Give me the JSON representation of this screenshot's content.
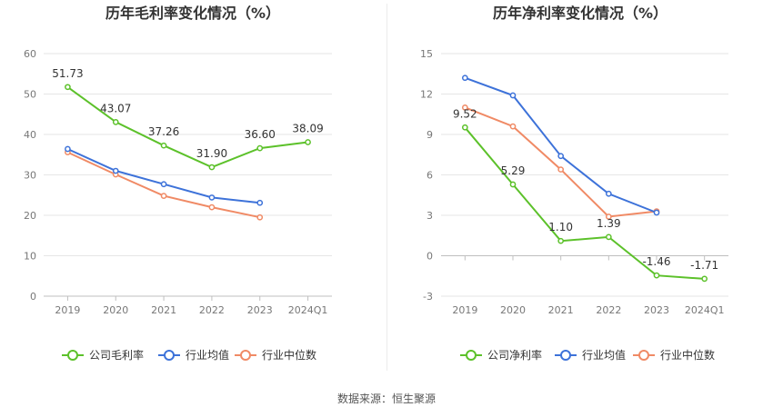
{
  "source_text": "数据来源：恒生聚源",
  "colors": {
    "company": "#5cc12a",
    "industry_avg": "#3d72d9",
    "industry_median": "#f08a65",
    "grid": "#e6e6e6",
    "axis_text": "#777777",
    "title": "#333333"
  },
  "chart_data": [
    {
      "type": "line",
      "title": "历年毛利率变化情况（%）",
      "categories": [
        "2019",
        "2020",
        "2021",
        "2022",
        "2023",
        "2024Q1"
      ],
      "ylim": [
        0,
        60
      ],
      "yticks": [
        0,
        10,
        20,
        30,
        40,
        50,
        60
      ],
      "grid": true,
      "legend_position": "bottom",
      "series": [
        {
          "name": "公司毛利率",
          "color_key": "company",
          "values": [
            51.73,
            43.07,
            37.26,
            31.9,
            36.6,
            38.09
          ],
          "labels": [
            "51.73",
            "43.07",
            "37.26",
            "31.90",
            "36.60",
            "38.09"
          ]
        },
        {
          "name": "行业均值",
          "color_key": "industry_avg",
          "values": [
            36.4,
            31.0,
            27.7,
            24.4,
            23.1,
            null
          ]
        },
        {
          "name": "行业中位数",
          "color_key": "industry_median",
          "values": [
            35.6,
            30.1,
            24.8,
            22.0,
            19.5,
            null
          ]
        }
      ]
    },
    {
      "type": "line",
      "title": "历年净利率变化情况（%）",
      "categories": [
        "2019",
        "2020",
        "2021",
        "2022",
        "2023",
        "2024Q1"
      ],
      "ylim": [
        -3,
        15
      ],
      "yticks": [
        -3,
        0,
        3,
        6,
        9,
        12,
        15
      ],
      "grid": true,
      "legend_position": "bottom",
      "series": [
        {
          "name": "公司净利率",
          "color_key": "company",
          "values": [
            9.52,
            5.29,
            1.1,
            1.39,
            -1.46,
            -1.71
          ],
          "labels": [
            "9.52",
            "5.29",
            "1.10",
            "1.39",
            "-1.46",
            "-1.71"
          ]
        },
        {
          "name": "行业均值",
          "color_key": "industry_avg",
          "values": [
            13.2,
            11.9,
            7.4,
            4.6,
            3.2,
            null
          ]
        },
        {
          "name": "行业中位数",
          "color_key": "industry_median",
          "values": [
            11.0,
            9.6,
            6.4,
            2.9,
            3.3,
            null
          ]
        }
      ]
    }
  ]
}
